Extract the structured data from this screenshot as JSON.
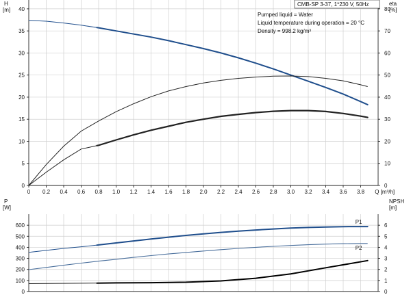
{
  "title_box": "CMB-SP 3-37, 1*230 V, 50Hz",
  "conditions": [
    "Pumped liquid = Water",
    "Liquid temperature during operation = 20 °C",
    "Density = 998.2 kg/m³"
  ],
  "colors": {
    "head": "#1f4e8c",
    "p1": "#1f4e8c",
    "p2": "#4a6f9c",
    "eta": "#222222",
    "npsh": "#000000",
    "grid": "#cfcfcf"
  },
  "chart_data": [
    {
      "type": "line",
      "x_unit_label": "Q [m³/h]",
      "left_axis": {
        "label_top": "H",
        "label_unit": "[m]",
        "ylim": [
          0,
          42
        ],
        "ticks": [
          0,
          5,
          10,
          15,
          20,
          25,
          30,
          35,
          40
        ]
      },
      "right_axis": {
        "label_top": "eta",
        "label_unit": "[%]",
        "ylim": [
          0,
          84
        ],
        "ticks": [
          0,
          10,
          20,
          30,
          40,
          50,
          60,
          70,
          80
        ]
      },
      "xlim": [
        0,
        4.0
      ],
      "xticks": [
        "0",
        "0.2",
        "0.4",
        "0.6",
        "0.8",
        "1.0",
        "1.2",
        "1.4",
        "1.6",
        "1.8",
        "2.0",
        "2.2",
        "2.4",
        "2.6",
        "2.8",
        "3.0",
        "3.2",
        "3.4",
        "3.6",
        "3.8"
      ],
      "xtick_values": [
        0,
        0.2,
        0.4,
        0.6,
        0.8,
        1.0,
        1.2,
        1.4,
        1.6,
        1.8,
        2.0,
        2.2,
        2.4,
        2.6,
        2.8,
        3.0,
        3.2,
        3.4,
        3.6,
        3.8
      ],
      "series": [
        {
          "axis": "left",
          "style": "head",
          "x": [
            0,
            0.2,
            0.4,
            0.6,
            0.8,
            1.0,
            1.2,
            1.4,
            1.6,
            1.8,
            2.0,
            2.2,
            2.4,
            2.6,
            2.8,
            3.0,
            3.2,
            3.4,
            3.6,
            3.8,
            3.88
          ],
          "y": [
            37.4,
            37.2,
            36.8,
            36.3,
            35.7,
            35.0,
            34.3,
            33.6,
            32.8,
            31.9,
            31.0,
            30.0,
            28.9,
            27.7,
            26.4,
            25.0,
            23.6,
            22.2,
            20.7,
            19.0,
            18.3
          ],
          "thick_from": 0.78
        },
        {
          "axis": "right",
          "style": "eta_thin",
          "x": [
            0,
            0.2,
            0.4,
            0.6,
            0.8,
            1.0,
            1.2,
            1.4,
            1.6,
            1.8,
            2.0,
            2.2,
            2.4,
            2.6,
            2.8,
            3.0,
            3.2,
            3.4,
            3.6,
            3.8,
            3.88
          ],
          "y": [
            0,
            9.5,
            17.8,
            24.6,
            29.2,
            33.4,
            37.0,
            40.2,
            42.8,
            44.8,
            46.4,
            47.6,
            48.5,
            49.1,
            49.5,
            49.6,
            49.3,
            48.5,
            47.4,
            45.6,
            44.8
          ]
        },
        {
          "axis": "right",
          "style": "eta_thick",
          "x": [
            0,
            0.2,
            0.4,
            0.6,
            0.8,
            1.0,
            1.2,
            1.4,
            1.6,
            1.8,
            2.0,
            2.2,
            2.4,
            2.6,
            2.8,
            3.0,
            3.2,
            3.4,
            3.6,
            3.8,
            3.88
          ],
          "y": [
            0,
            6,
            11.6,
            16.5,
            18.2,
            20.6,
            22.9,
            25.0,
            26.8,
            28.6,
            30.0,
            31.3,
            32.2,
            33.0,
            33.6,
            33.9,
            33.9,
            33.5,
            32.6,
            31.4,
            30.8
          ],
          "thick_from": 0.78
        }
      ]
    },
    {
      "type": "line",
      "left_axis": {
        "label_top": "P",
        "label_unit": "[W]",
        "ylim": [
          0,
          700
        ],
        "ticks": [
          0,
          100,
          200,
          300,
          400,
          500,
          600
        ]
      },
      "right_axis": {
        "label_top": "NPSH",
        "label_unit": "[m]",
        "ylim": [
          0,
          7
        ],
        "ticks": [
          0,
          1,
          2,
          3,
          4,
          5,
          6
        ]
      },
      "xlim": [
        0,
        4.0
      ],
      "series": [
        {
          "name": "P1",
          "axis": "left",
          "style": "p1",
          "x": [
            0,
            0.2,
            0.4,
            0.6,
            0.8,
            1.0,
            1.2,
            1.4,
            1.6,
            1.8,
            2.0,
            2.2,
            2.4,
            2.6,
            2.8,
            3.0,
            3.2,
            3.4,
            3.6,
            3.8,
            3.88
          ],
          "y": [
            355,
            372,
            390,
            405,
            422,
            440,
            458,
            475,
            492,
            508,
            522,
            535,
            547,
            557,
            566,
            574,
            580,
            584,
            587,
            588,
            588
          ],
          "thick_from": 0.78
        },
        {
          "name": "P2",
          "axis": "left",
          "style": "p2",
          "x": [
            0,
            0.2,
            0.4,
            0.6,
            0.8,
            1.0,
            1.2,
            1.4,
            1.6,
            1.8,
            2.0,
            2.2,
            2.4,
            2.6,
            2.8,
            3.0,
            3.2,
            3.4,
            3.6,
            3.8,
            3.88
          ],
          "y": [
            198,
            218,
            238,
            257,
            275,
            292,
            309,
            325,
            340,
            354,
            367,
            379,
            390,
            400,
            409,
            417,
            424,
            429,
            433,
            435,
            435
          ]
        },
        {
          "axis": "right",
          "style": "npsh",
          "x": [
            0,
            0.4,
            0.78,
            1.0,
            1.4,
            1.8,
            2.2,
            2.6,
            3.0,
            3.4,
            3.88
          ],
          "y": [
            0.72,
            0.74,
            0.76,
            0.78,
            0.8,
            0.84,
            0.96,
            1.2,
            1.6,
            2.15,
            2.8
          ],
          "thick_from": 0.78
        }
      ]
    }
  ]
}
